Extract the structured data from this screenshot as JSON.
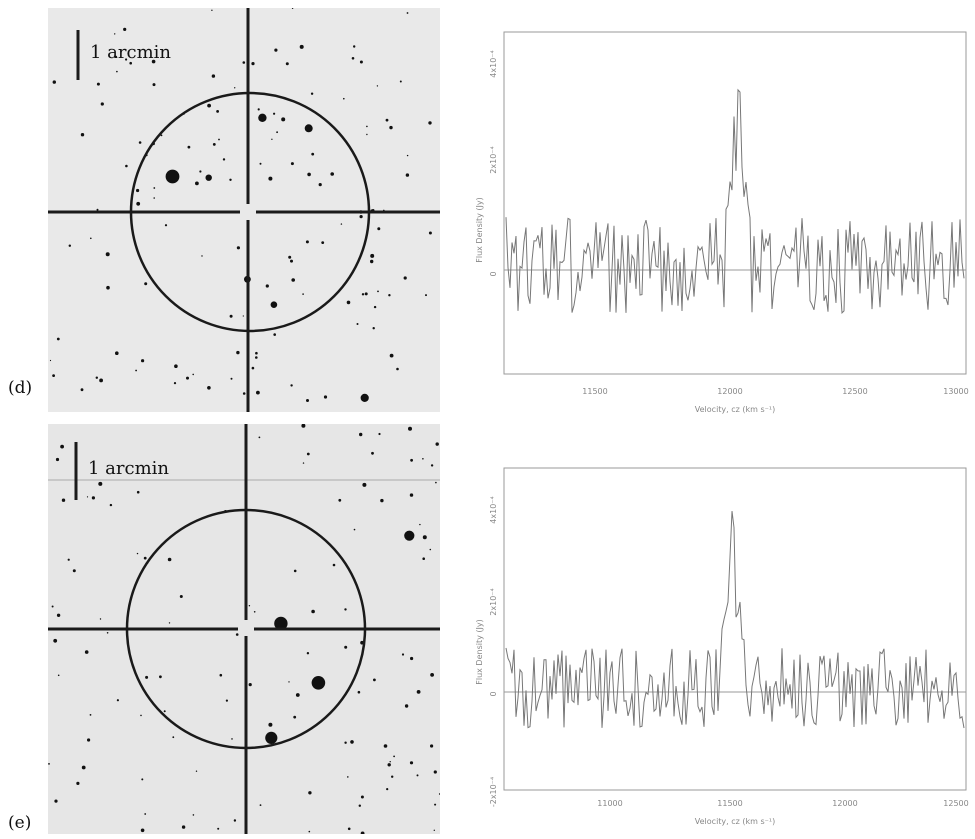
{
  "panels": [
    {
      "letter": "(d)",
      "image": {
        "scale_bar_label": "1 arcmin"
      },
      "spectrum": {
        "x_ticks": [
          "11500",
          "12000",
          "12500",
          "13000"
        ],
        "y_ticks": [
          "0",
          "2x10⁻⁴",
          "4x10⁻⁴"
        ],
        "ylabel": "Flux Density (Jy)",
        "xlabel": "Velocity, cz (km s⁻¹)"
      }
    },
    {
      "letter": "(e)",
      "image": {
        "scale_bar_label": "1 arcmin"
      },
      "spectrum": {
        "x_ticks": [
          "11000",
          "11500",
          "12000",
          "12500"
        ],
        "y_ticks": [
          "-2x10⁻⁴",
          "0",
          "2x10⁻⁴",
          "4x10⁻⁴"
        ],
        "ylabel": "Flux Density (Jy)",
        "xlabel": "Velocity, cz (km s⁻¹)"
      }
    }
  ],
  "colors": {
    "sky_bg": "#e9e9e9",
    "overlay": "#1a1a1a",
    "spectrum_line": "#777777",
    "axis": "#9a9a9a"
  }
}
